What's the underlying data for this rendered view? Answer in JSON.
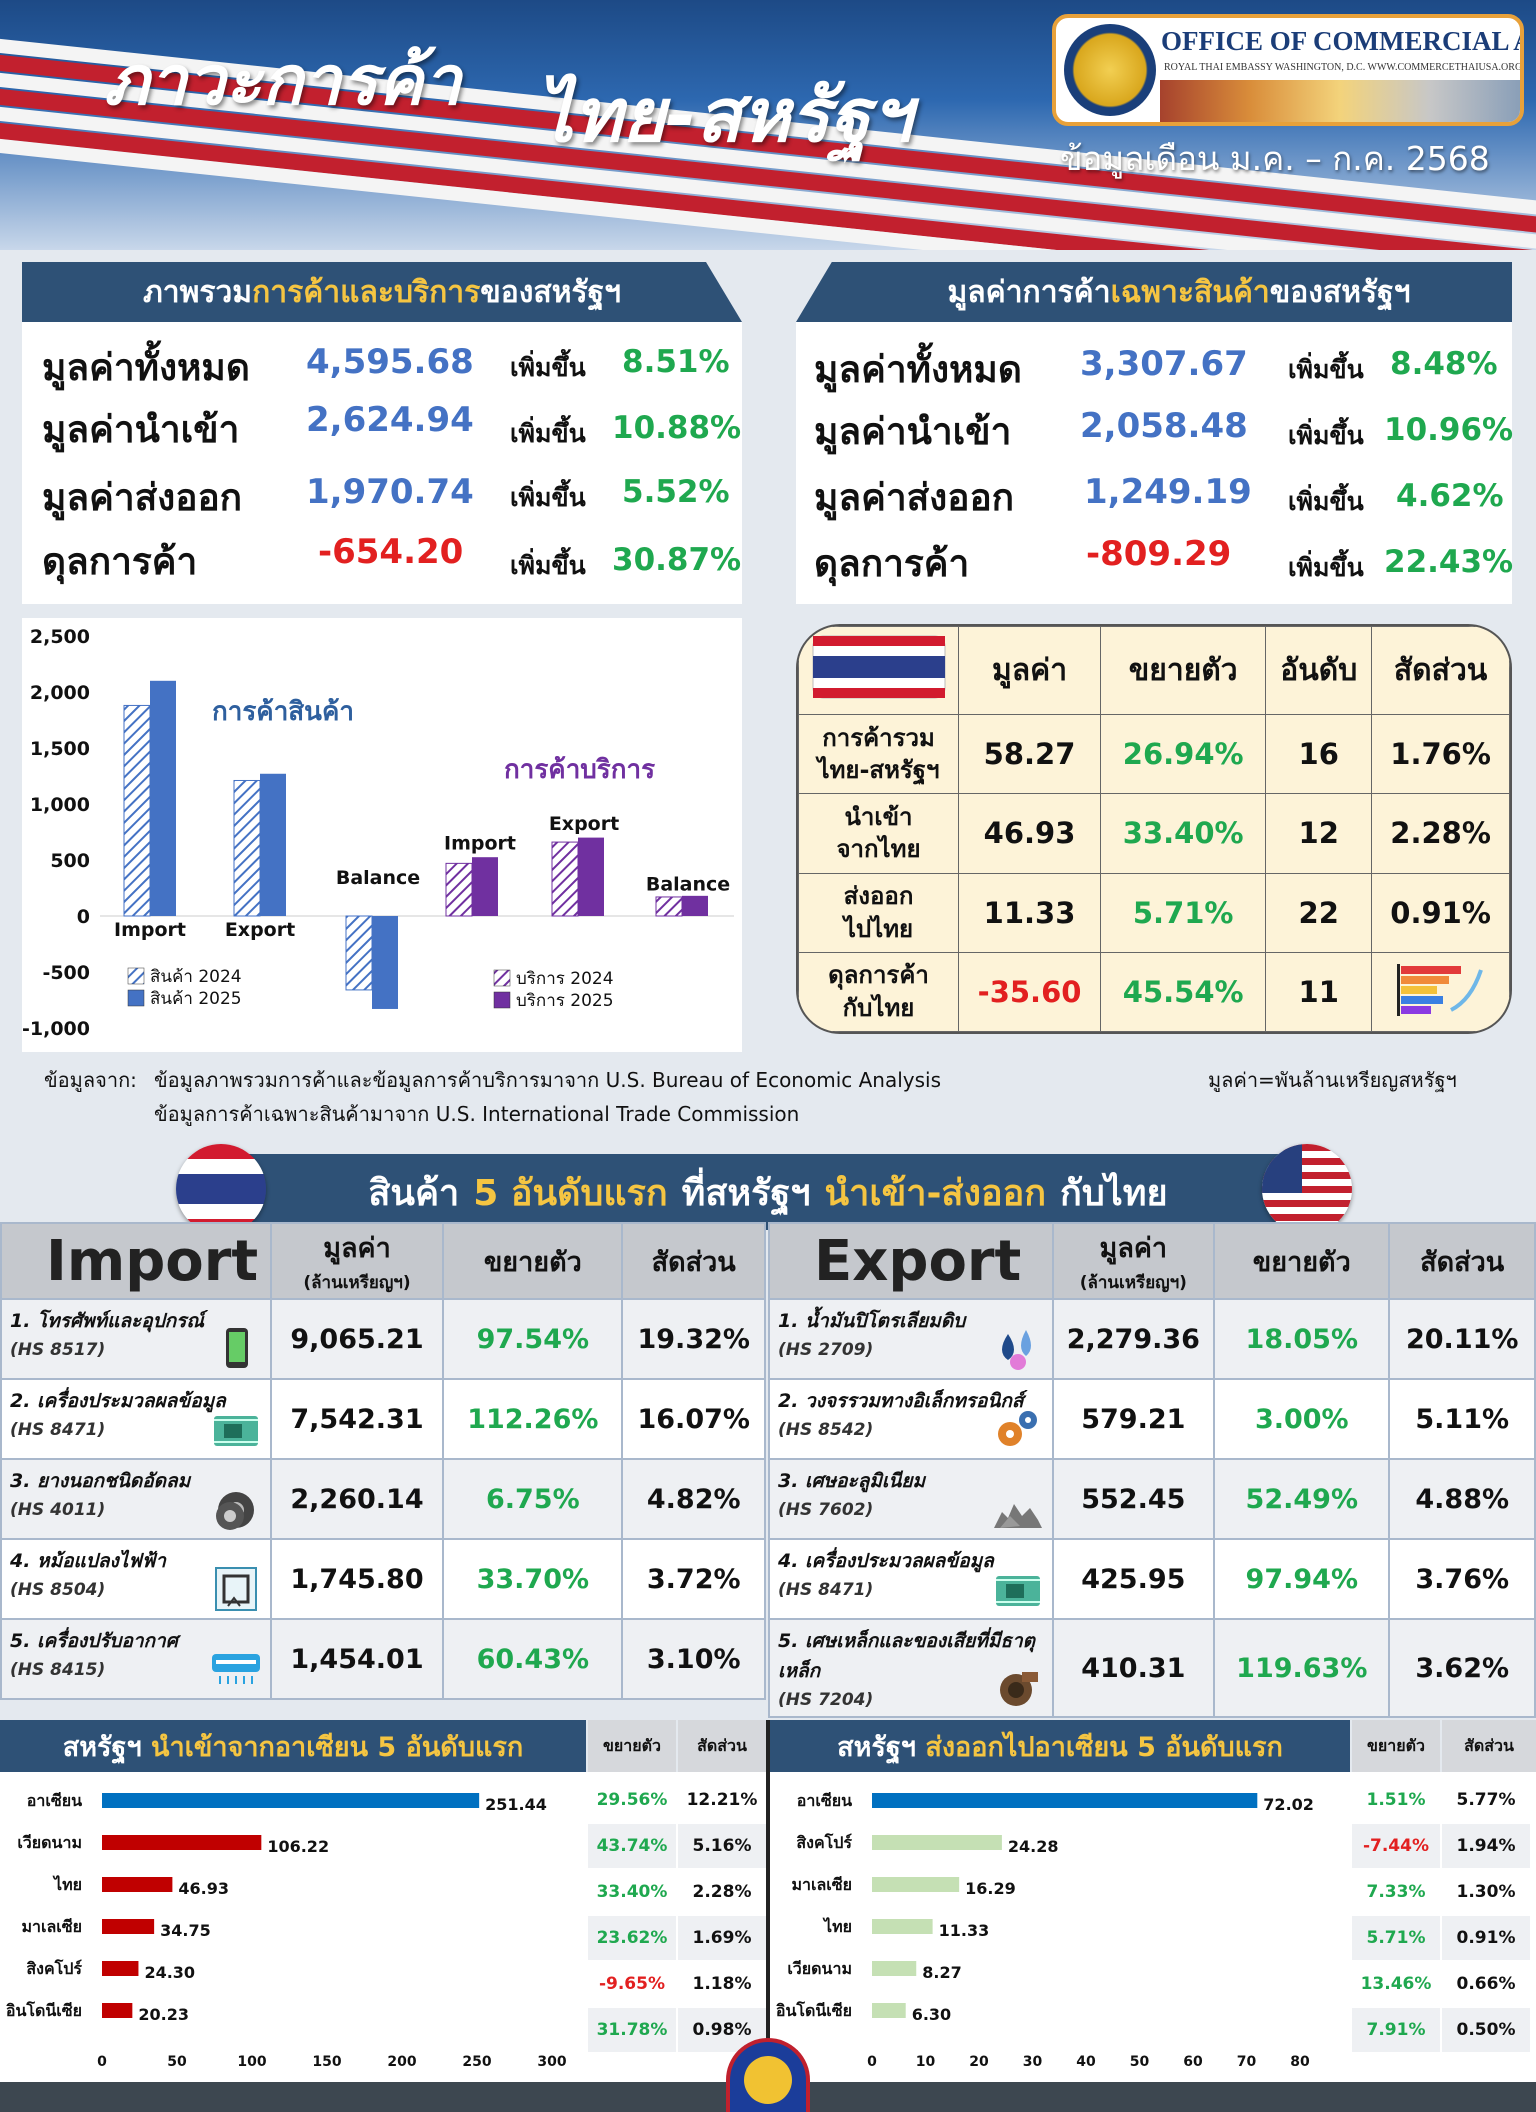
{
  "header": {
    "title_part1": "ภาวะการค้า",
    "title_part2": "ไทย-สหรัฐฯ",
    "period": "ข้อมูลเดือน ม.ค. – ก.ค. 2568",
    "logo_title": "OFFICE OF COMMERCIAL AFFAIRS",
    "logo_sub": "ROYAL THAI EMBASSY WASHINGTON, D.C.   WWW.COMMERCETHAIUSA.ORG"
  },
  "overview": {
    "title_pre": "ภาพรวม",
    "title_hl": "การค้าและบริการ",
    "title_post": "ของสหรัฐฯ",
    "rows": [
      {
        "label": "มูลค่าทั้งหมด",
        "value": "4,595.68",
        "inc": "เพิ่มขึ้น",
        "pct": "8.51%"
      },
      {
        "label": "มูลค่านำเข้า",
        "value": "2,624.94",
        "inc": "เพิ่มขึ้น",
        "pct": "10.88%"
      },
      {
        "label": "มูลค่าส่งออก",
        "value": "1,970.74",
        "inc": "เพิ่มขึ้น",
        "pct": "5.52%"
      },
      {
        "label": "ดุลการค้า",
        "value": "-654.20",
        "inc": "เพิ่มขึ้น",
        "pct": "30.87%"
      }
    ]
  },
  "goods": {
    "title_pre": "มูลค่าการค้า",
    "title_hl": "เฉพาะสินค้า",
    "title_post": "ของสหรัฐฯ",
    "rows": [
      {
        "label": "มูลค่าทั้งหมด",
        "value": "3,307.67",
        "inc": "เพิ่มขึ้น",
        "pct": "8.48%"
      },
      {
        "label": "มูลค่านำเข้า",
        "value": "2,058.48",
        "inc": "เพิ่มขึ้น",
        "pct": "10.96%"
      },
      {
        "label": "มูลค่าส่งออก",
        "value": "1,249.19",
        "inc": "เพิ่มขึ้น",
        "pct": "4.62%"
      },
      {
        "label": "ดุลการค้า",
        "value": "-809.29",
        "inc": "เพิ่มขึ้น",
        "pct": "22.43%"
      }
    ]
  },
  "thai_table": {
    "headers": [
      "มูลค่า",
      "ขยายตัว",
      "อันดับ",
      "สัดส่วน"
    ],
    "rows": [
      {
        "l1": "การค้ารวม",
        "l2": "ไทย-สหรัฐฯ",
        "value": "58.27",
        "growth": "26.94%",
        "rank": "16",
        "share": "1.76%"
      },
      {
        "l1": "นำเข้า",
        "l2": "จากไทย",
        "value": "46.93",
        "growth": "33.40%",
        "rank": "12",
        "share": "2.28%"
      },
      {
        "l1": "ส่งออก",
        "l2": "ไปไทย",
        "value": "11.33",
        "growth": "5.71%",
        "rank": "22",
        "share": "0.91%"
      },
      {
        "l1": "ดุลการค้า",
        "l2": "กับไทย",
        "value": "-35.60",
        "growth": "45.54%",
        "rank": "11",
        "share": ""
      }
    ]
  },
  "notes": {
    "source_label": "ข้อมูลจาก:",
    "source_1": "ข้อมูลภาพรวมการค้าและข้อมูลการค้าบริการมาจาก U.S. Bureau of Economic Analysis",
    "source_2": "ข้อมูลการค้าเฉพาะสินค้ามาจาก U.S. International Trade Commission",
    "unit": "มูลค่า=พันล้านเหรียญสหรัฐฯ"
  },
  "top5": {
    "title_a": "สินค้า",
    "title_b": "5 อันดับแรก",
    "title_c": "ที่สหรัฐฯ",
    "title_d": "นำเข้า-ส่งออก",
    "title_e": "กับไทย",
    "value_h": "มูลค่า",
    "value_unit": "(ล้านเหรียญฯ)",
    "growth_h": "ขยายตัว",
    "share_h": "สัดส่วน",
    "import_label": "Import",
    "export_label": "Export",
    "imports": [
      {
        "name": "1. โทรศัพท์และอุปกรณ์",
        "hs": "(HS 8517)",
        "value": "9,065.21",
        "growth": "97.54%",
        "share": "19.32%",
        "icon": "smartphone-icon"
      },
      {
        "name": "2.  เครื่องประมวลผลข้อมูล",
        "hs": "(HS 8471)",
        "value": "7,542.31",
        "growth": "112.26%",
        "share": "16.07%",
        "icon": "circuit-board-icon"
      },
      {
        "name": "3. ยางนอกชนิดอัดลม",
        "hs": "(HS 4011)",
        "value": "2,260.14",
        "growth": "6.75%",
        "share": "4.82%",
        "icon": "tires-icon"
      },
      {
        "name": "4. หม้อแปลงไฟฟ้า",
        "hs": "(HS 8504)",
        "value": "1,745.80",
        "growth": "33.70%",
        "share": "3.72%",
        "icon": "transformer-icon"
      },
      {
        "name": "5. เครื่องปรับอากาศ",
        "hs": "(HS 8415)",
        "value": "1,454.01",
        "growth": "60.43%",
        "share": "3.10%",
        "icon": "air-conditioner-icon"
      }
    ],
    "exports": [
      {
        "name": "1. น้ำมันปิโตรเลียมดิบ",
        "hs": "(HS 2709)",
        "value": "2,279.36",
        "growth": "18.05%",
        "share": "20.11%",
        "icon": "oil-drops-icon"
      },
      {
        "name": "2. วงจรรวมทางอิเล็กทรอนิกส์",
        "hs": "(HS 8542)",
        "value": "579.21",
        "growth": "3.00%",
        "share": "5.11%",
        "icon": "gears-icon"
      },
      {
        "name": "3. เศษอะลูมิเนียม",
        "hs": "(HS 7602)",
        "value": "552.45",
        "growth": "52.49%",
        "share": "4.88%",
        "icon": "scrap-icon"
      },
      {
        "name": "4. เครื่องประมวลผลข้อมูล",
        "hs": "(HS 8471)",
        "value": "425.95",
        "growth": "97.94%",
        "share": "3.76%",
        "icon": "circuit-board-icon"
      },
      {
        "name": "5. เศษเหล็กและของเสียที่มีธาตุเหล็ก",
        "hs": "(HS 7204)",
        "value": "410.31",
        "growth": "119.63%",
        "share": "3.62%",
        "icon": "iron-scrap-icon"
      }
    ]
  },
  "asean": {
    "import_title_pre": "สหรัฐฯ",
    "import_title_hl": "นำเข้าจากอาเซียน 5 อันดับแรก",
    "export_title_pre": "สหรัฐฯ",
    "export_title_hl": "ส่งออกไปอาเซียน 5 อันดับแรก",
    "growth_h": "ขยายตัว",
    "share_h": "สัดส่วน",
    "imports": [
      {
        "growth": "29.56%",
        "share": "12.21%"
      },
      {
        "growth": "43.74%",
        "share": "5.16%"
      },
      {
        "growth": "33.40%",
        "share": "2.28%"
      },
      {
        "growth": "23.62%",
        "share": "1.69%"
      },
      {
        "growth": "-9.65%",
        "share": "1.18%"
      },
      {
        "growth": "31.78%",
        "share": "0.98%"
      }
    ],
    "exports": [
      {
        "growth": "1.51%",
        "share": "5.77%"
      },
      {
        "growth": "-7.44%",
        "share": "1.94%"
      },
      {
        "growth": "7.33%",
        "share": "1.30%"
      },
      {
        "growth": "5.71%",
        "share": "0.91%"
      },
      {
        "growth": "13.46%",
        "share": "0.66%"
      },
      {
        "growth": "7.91%",
        "share": "0.50%"
      }
    ]
  },
  "colors": {
    "navy": "#2e5176",
    "gold": "#f5c542",
    "blue_value": "#4472c4",
    "green": "#1fa84f",
    "red": "#e22020",
    "goods_bar": "#4472c4",
    "service_bar": "#7030a0",
    "asean_import_thai": "#c00000",
    "asean_bar_blue": "#0070c0",
    "asean_export_bar": "#c5e0b4"
  },
  "chart_data": [
    {
      "type": "bar",
      "categories": [
        "Import",
        "Export",
        "Balance",
        "Import",
        "Export",
        "Balance"
      ],
      "series": [
        {
          "name": "สินค้า 2024",
          "values": [
            1880,
            1210,
            -660,
            null,
            null,
            null
          ]
        },
        {
          "name": "สินค้า 2025",
          "values": [
            2100,
            1270,
            -830,
            null,
            null,
            null
          ]
        },
        {
          "name": "บริการ 2024",
          "values": [
            null,
            null,
            null,
            470,
            660,
            170
          ]
        },
        {
          "name": "บริการ 2025",
          "values": [
            null,
            null,
            null,
            525,
            700,
            180
          ]
        }
      ],
      "annotations": [
        "การค้าสินค้า",
        "การค้าบริการ"
      ],
      "ylim": [
        -1000,
        2500
      ],
      "yticks": [
        "2,500",
        "2,000",
        "1,500",
        "1,000",
        "500",
        "0",
        "-500",
        "-1,000"
      ],
      "legend": "bottom"
    },
    {
      "type": "bar",
      "orientation": "horizontal",
      "categories": [
        "อาเซียน",
        "เวียดนาม",
        "ไทย",
        "มาเลเซีย",
        "สิงคโปร์",
        "อินโดนีเซีย"
      ],
      "values": [
        251.44,
        106.22,
        46.93,
        34.75,
        24.3,
        20.23
      ],
      "labels": [
        "251.44",
        "106.22",
        "46.93",
        "34.75",
        "24.30",
        "20.23"
      ],
      "xlim": [
        0,
        300
      ],
      "xticks": [
        "0",
        "50",
        "100",
        "150",
        "200",
        "250",
        "300"
      ]
    },
    {
      "type": "bar",
      "orientation": "horizontal",
      "categories": [
        "อาเซียน",
        "สิงคโปร์",
        "มาเลเซีย",
        "ไทย",
        "เวียดนาม",
        "อินโดนีเซีย"
      ],
      "values": [
        72.02,
        24.28,
        16.29,
        11.33,
        8.27,
        6.3
      ],
      "labels": [
        "72.02",
        "24.28",
        "16.29",
        "11.33",
        "8.27",
        "6.30"
      ],
      "xlim": [
        0,
        80
      ],
      "xticks": [
        "0",
        "10",
        "20",
        "30",
        "40",
        "50",
        "60",
        "70",
        "80"
      ]
    }
  ]
}
